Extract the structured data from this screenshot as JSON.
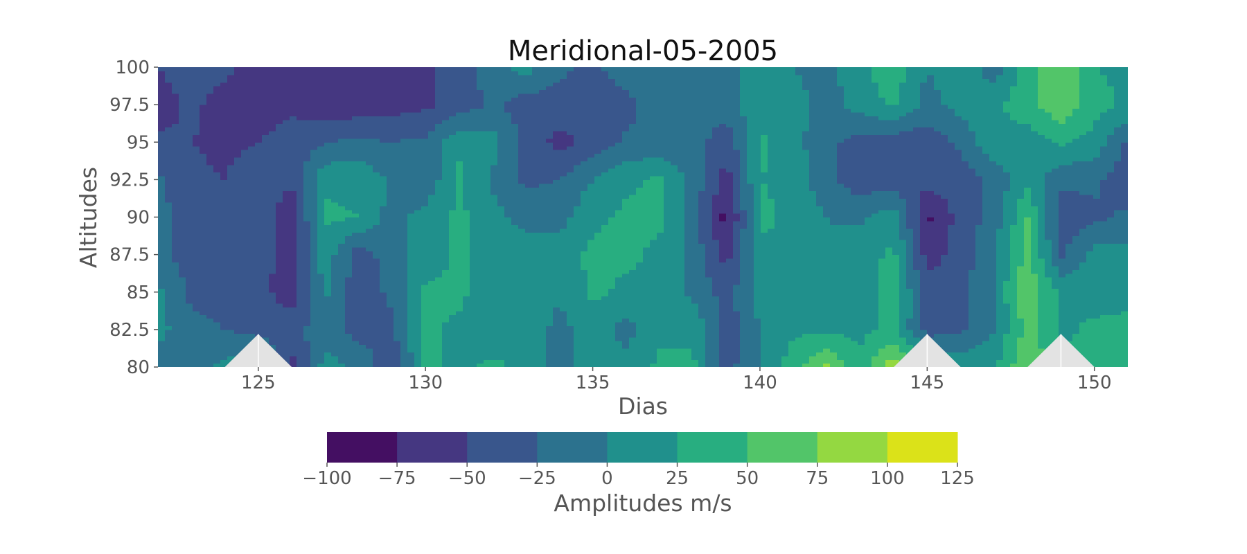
{
  "chart_data": {
    "type": "heatmap",
    "title": "Meridional-05-2005",
    "xlabel": "Dias",
    "ylabel": "Altitudes",
    "xlim": [
      122,
      151
    ],
    "ylim": [
      80,
      100
    ],
    "x_ticks": [
      125,
      130,
      135,
      140,
      145,
      150
    ],
    "x_tick_labels": [
      "125",
      "130",
      "135",
      "140",
      "145",
      "150"
    ],
    "y_ticks": [
      80,
      82.5,
      85,
      87.5,
      90,
      92.5,
      95,
      97.5,
      100
    ],
    "y_tick_labels": [
      "80",
      "82.5",
      "85",
      "87.5",
      "90",
      "92.5",
      "95",
      "97.5",
      "100"
    ],
    "x": [
      122,
      123,
      124,
      125,
      126,
      127,
      128,
      129,
      130,
      131,
      132,
      133,
      134,
      135,
      136,
      137,
      138,
      139,
      140,
      141,
      142,
      143,
      144,
      145,
      146,
      147,
      148,
      149,
      150,
      151
    ],
    "y": [
      80,
      82.5,
      85,
      87.5,
      90,
      92.5,
      95,
      97.5,
      100
    ],
    "z": [
      [
        -20,
        -10,
        5,
        30,
        -60,
        10,
        -5,
        -45,
        30,
        20,
        30,
        20,
        -10,
        10,
        10,
        30,
        30,
        -35,
        0,
        40,
        80,
        30,
        95,
        25,
        20,
        20,
        75,
        30,
        40,
        40
      ],
      [
        10,
        -20,
        -25,
        -35,
        -35,
        -10,
        -35,
        -30,
        30,
        20,
        10,
        20,
        -10,
        15,
        -10,
        20,
        20,
        -40,
        0,
        20,
        20,
        20,
        30,
        -35,
        -30,
        0,
        60,
        20,
        30,
        30
      ],
      [
        5,
        -30,
        -30,
        -40,
        -65,
        5,
        -40,
        -20,
        30,
        30,
        10,
        10,
        5,
        30,
        20,
        20,
        -5,
        -35,
        10,
        25,
        5,
        10,
        40,
        -40,
        -35,
        0,
        70,
        20,
        15,
        20
      ],
      [
        -15,
        -40,
        -40,
        -35,
        -70,
        15,
        -40,
        -10,
        10,
        30,
        10,
        15,
        15,
        30,
        30,
        20,
        -10,
        -60,
        20,
        20,
        0,
        15,
        30,
        -60,
        -40,
        0,
        60,
        -30,
        10,
        10
      ],
      [
        -15,
        -40,
        -45,
        -30,
        -70,
        30,
        25,
        -10,
        10,
        30,
        10,
        -10,
        -10,
        20,
        30,
        30,
        -10,
        -85,
        30,
        20,
        0,
        -5,
        15,
        -80,
        -40,
        -15,
        50,
        -40,
        -30,
        -20
      ],
      [
        -20,
        -45,
        -50,
        -35,
        -45,
        20,
        20,
        -5,
        -20,
        30,
        -5,
        -30,
        -25,
        0,
        20,
        30,
        -10,
        -60,
        25,
        20,
        -20,
        -40,
        -40,
        -40,
        -40,
        -20,
        20,
        -20,
        -20,
        -40
      ],
      [
        -45,
        -50,
        -55,
        -50,
        -40,
        -25,
        -20,
        -25,
        -20,
        20,
        10,
        -30,
        -60,
        -40,
        -20,
        -20,
        -10,
        -45,
        30,
        10,
        -20,
        -35,
        -40,
        -40,
        -20,
        20,
        10,
        30,
        15,
        -30
      ],
      [
        -60,
        -45,
        -60,
        -60,
        -55,
        -70,
        -65,
        -60,
        -55,
        -40,
        -20,
        -40,
        -35,
        -40,
        -35,
        -5,
        -10,
        -10,
        15,
        10,
        -10,
        10,
        30,
        -10,
        10,
        20,
        40,
        70,
        35,
        20
      ],
      [
        -50,
        -40,
        -45,
        -60,
        -65,
        -60,
        -55,
        -65,
        -55,
        -40,
        -10,
        10,
        -20,
        -30,
        -10,
        -5,
        -20,
        -10,
        10,
        0,
        -10,
        20,
        40,
        0,
        20,
        -15,
        40,
        70,
        25,
        20
      ]
    ],
    "colorbar": {
      "label": "Amplitudes m/s",
      "levels": [
        -100,
        -75,
        -50,
        -25,
        0,
        25,
        50,
        75,
        100,
        125
      ],
      "tick_labels": [
        "−100",
        "−75",
        "−50",
        "−25",
        "0",
        "25",
        "50",
        "75",
        "100",
        "125"
      ],
      "colors": [
        "#440f62",
        "#453781",
        "#39568c",
        "#2c728e",
        "#20908c",
        "#28ae80",
        "#52c569",
        "#94d841",
        "#dbe219"
      ]
    },
    "masked_region_color": "#e3e3e3",
    "masked_regions": [
      {
        "x": [
          124,
          125,
          126
        ],
        "y": [
          80,
          82.2,
          80
        ]
      },
      {
        "x": [
          144,
          145,
          146
        ],
        "y": [
          80,
          82.2,
          80
        ]
      },
      {
        "x": [
          148,
          149,
          150
        ],
        "y": [
          80,
          82.2,
          80
        ]
      }
    ]
  }
}
